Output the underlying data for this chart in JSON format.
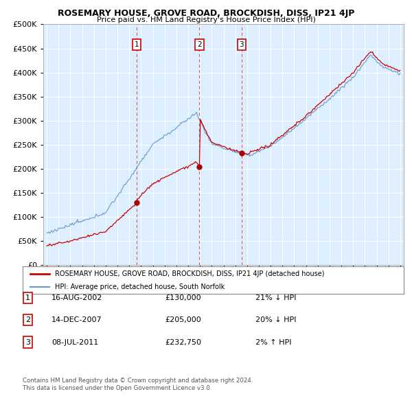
{
  "title": "ROSEMARY HOUSE, GROVE ROAD, BROCKDISH, DISS, IP21 4JP",
  "subtitle": "Price paid vs. HM Land Registry's House Price Index (HPI)",
  "legend_line1": "ROSEMARY HOUSE, GROVE ROAD, BROCKDISH, DISS, IP21 4JP (detached house)",
  "legend_line2": "HPI: Average price, detached house, South Norfolk",
  "footer1": "Contains HM Land Registry data © Crown copyright and database right 2024.",
  "footer2": "This data is licensed under the Open Government Licence v3.0.",
  "transactions": [
    {
      "num": 1,
      "date": "16-AUG-2002",
      "price_str": "£130,000",
      "pct": "21%",
      "dir": "↓"
    },
    {
      "num": 2,
      "date": "14-DEC-2007",
      "price_str": "£205,000",
      "pct": "20%",
      "dir": "↓"
    },
    {
      "num": 3,
      "date": "08-JUL-2011",
      "price_str": "£232,750",
      "pct": "2%",
      "dir": "↑"
    }
  ],
  "sale_times": [
    2002.622,
    2007.958,
    2011.542
  ],
  "sale_prices": [
    130000,
    205000,
    232750
  ],
  "ylim": [
    0,
    500000
  ],
  "yticks": [
    0,
    50000,
    100000,
    150000,
    200000,
    250000,
    300000,
    350000,
    400000,
    450000,
    500000
  ],
  "xlim_start": 1994.7,
  "xlim_end": 2025.3,
  "bg_color": "#ffffff",
  "plot_bg_color": "#ddeeff",
  "grid_color": "#ffffff",
  "red_color": "#cc0000",
  "blue_color": "#6699cc",
  "vline_color": "#dd3333",
  "marker_color": "#aa0000",
  "marker_size": 6
}
